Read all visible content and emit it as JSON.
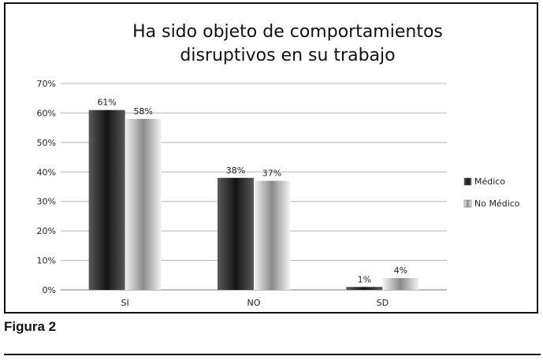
{
  "chart_data": {
    "type": "bar",
    "title_lines": [
      "Ha sido objeto de comportamientos",
      "disruptivos en su trabajo"
    ],
    "categories": [
      "SI",
      "NO",
      "SD"
    ],
    "series": [
      {
        "name": "Médico",
        "values": [
          61,
          38,
          1
        ],
        "labels": [
          "61%",
          "38%",
          "1%"
        ],
        "color": "#2a2a2a"
      },
      {
        "name": "No Médico",
        "values": [
          58,
          37,
          4
        ],
        "labels": [
          "58%",
          "37%",
          "4%"
        ],
        "color": "#9a9a9a"
      }
    ],
    "ylim": [
      0,
      70
    ],
    "yticks": [
      0,
      10,
      20,
      30,
      40,
      50,
      60,
      70
    ],
    "ytick_labels": [
      "0%",
      "10%",
      "20%",
      "30%",
      "40%",
      "50%",
      "60%",
      "70%"
    ],
    "grid": true,
    "legend_position": "right"
  },
  "caption": "Figura 2"
}
